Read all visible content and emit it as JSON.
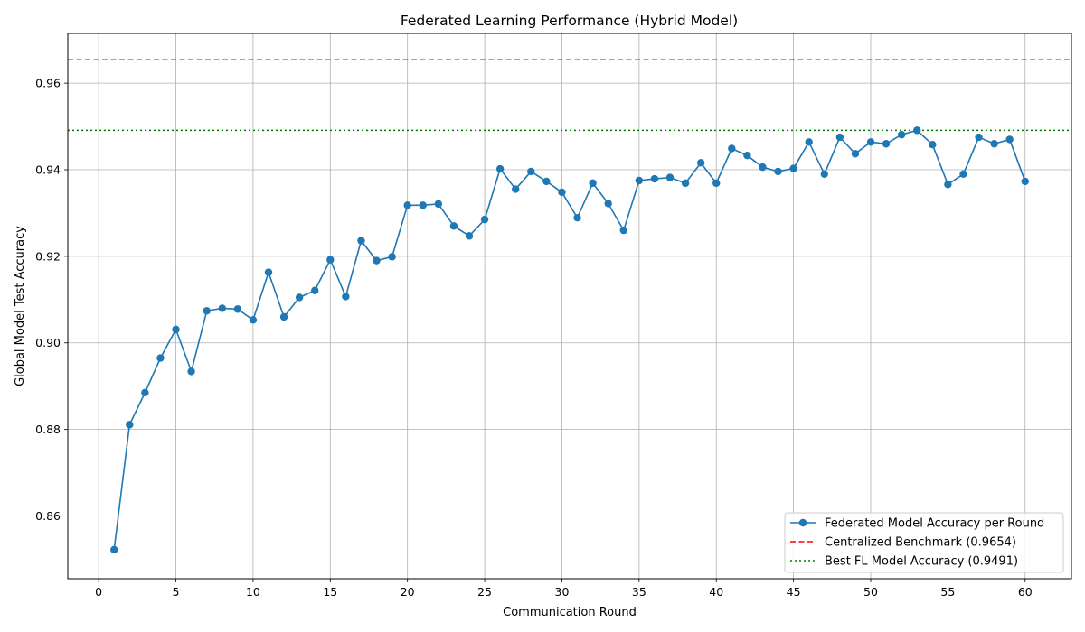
{
  "chart_data": {
    "type": "line",
    "title": "Federated Learning Performance (Hybrid Model)",
    "xlabel": "Communication Round",
    "ylabel": "Global Model Test Accuracy",
    "xlim": [
      -2,
      63
    ],
    "ylim": [
      0.8455,
      0.9715
    ],
    "xticks": [
      0,
      5,
      10,
      15,
      20,
      25,
      30,
      35,
      40,
      45,
      50,
      55,
      60
    ],
    "xtick_labels": [
      "0",
      "5",
      "10",
      "15",
      "20",
      "25",
      "30",
      "35",
      "40",
      "45",
      "50",
      "55",
      "60"
    ],
    "yticks": [
      0.86,
      0.88,
      0.9,
      0.92,
      0.94,
      0.96
    ],
    "ytick_labels": [
      "0.86",
      "0.88",
      "0.90",
      "0.92",
      "0.94",
      "0.96"
    ],
    "grid": true,
    "legend_position": "bottom-right",
    "series": [
      {
        "name": "Federated Model Accuracy per Round",
        "color": "#1f77b4",
        "style": "solid-with-markers",
        "x": [
          1,
          2,
          3,
          4,
          5,
          6,
          7,
          8,
          9,
          10,
          11,
          12,
          13,
          14,
          15,
          16,
          17,
          18,
          19,
          20,
          21,
          22,
          23,
          24,
          25,
          26,
          27,
          28,
          29,
          30,
          31,
          32,
          33,
          34,
          35,
          36,
          37,
          38,
          39,
          40,
          41,
          42,
          43,
          44,
          45,
          46,
          47,
          48,
          49,
          50,
          51,
          52,
          53,
          54,
          55,
          56,
          57,
          58,
          59,
          60
        ],
        "y": [
          0.8522,
          0.8811,
          0.8885,
          0.8965,
          0.9031,
          0.8934,
          0.9074,
          0.908,
          0.9078,
          0.9053,
          0.9163,
          0.906,
          0.9105,
          0.9121,
          0.9192,
          0.9107,
          0.9236,
          0.919,
          0.9199,
          0.9318,
          0.9318,
          0.9321,
          0.927,
          0.9247,
          0.9285,
          0.9402,
          0.9355,
          0.9396,
          0.9373,
          0.9348,
          0.9289,
          0.9369,
          0.9322,
          0.926,
          0.9375,
          0.9379,
          0.9382,
          0.9369,
          0.9416,
          0.9369,
          0.9449,
          0.9433,
          0.9406,
          0.9396,
          0.9403,
          0.9464,
          0.939,
          0.9475,
          0.9437,
          0.9464,
          0.946,
          0.9481,
          0.9491,
          0.9458,
          0.9366,
          0.939,
          0.9475,
          0.946,
          0.947,
          0.9373
        ]
      },
      {
        "name": "Centralized Benchmark (0.9654)",
        "color": "#ff0000",
        "style": "dashed",
        "hline": 0.9654
      },
      {
        "name": "Best FL Model Accuracy (0.9491)",
        "color": "#008000",
        "style": "dotted",
        "hline": 0.9491
      }
    ]
  }
}
